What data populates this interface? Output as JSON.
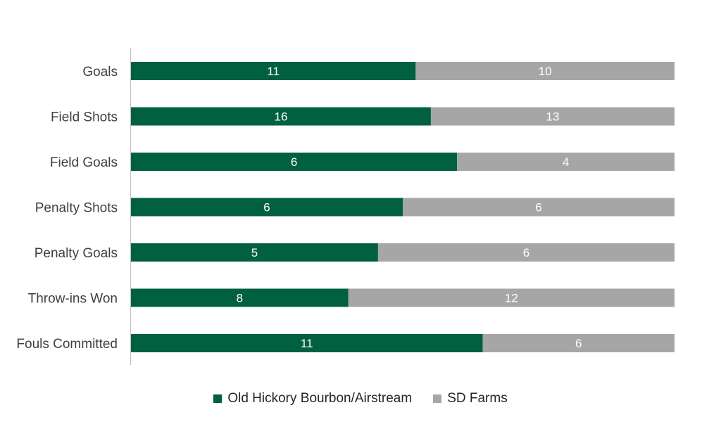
{
  "colors": {
    "series_0": "#006040",
    "series_1": "#a6a6a6",
    "axis": "#bfbfbf"
  },
  "chart_data": {
    "type": "bar",
    "orientation": "horizontal",
    "stacking": "100%",
    "categories": [
      "Goals",
      "Field Shots",
      "Field Goals",
      "Penalty Shots",
      "Penalty Goals",
      "Throw-ins Won",
      "Fouls Committed"
    ],
    "series": [
      {
        "name": "Old Hickory Bourbon/Airstream",
        "values": [
          11,
          16,
          6,
          6,
          5,
          8,
          11
        ]
      },
      {
        "name": "SD Farms",
        "values": [
          10,
          13,
          4,
          6,
          6,
          12,
          6
        ]
      }
    ],
    "legend_position": "bottom",
    "grid": false
  }
}
